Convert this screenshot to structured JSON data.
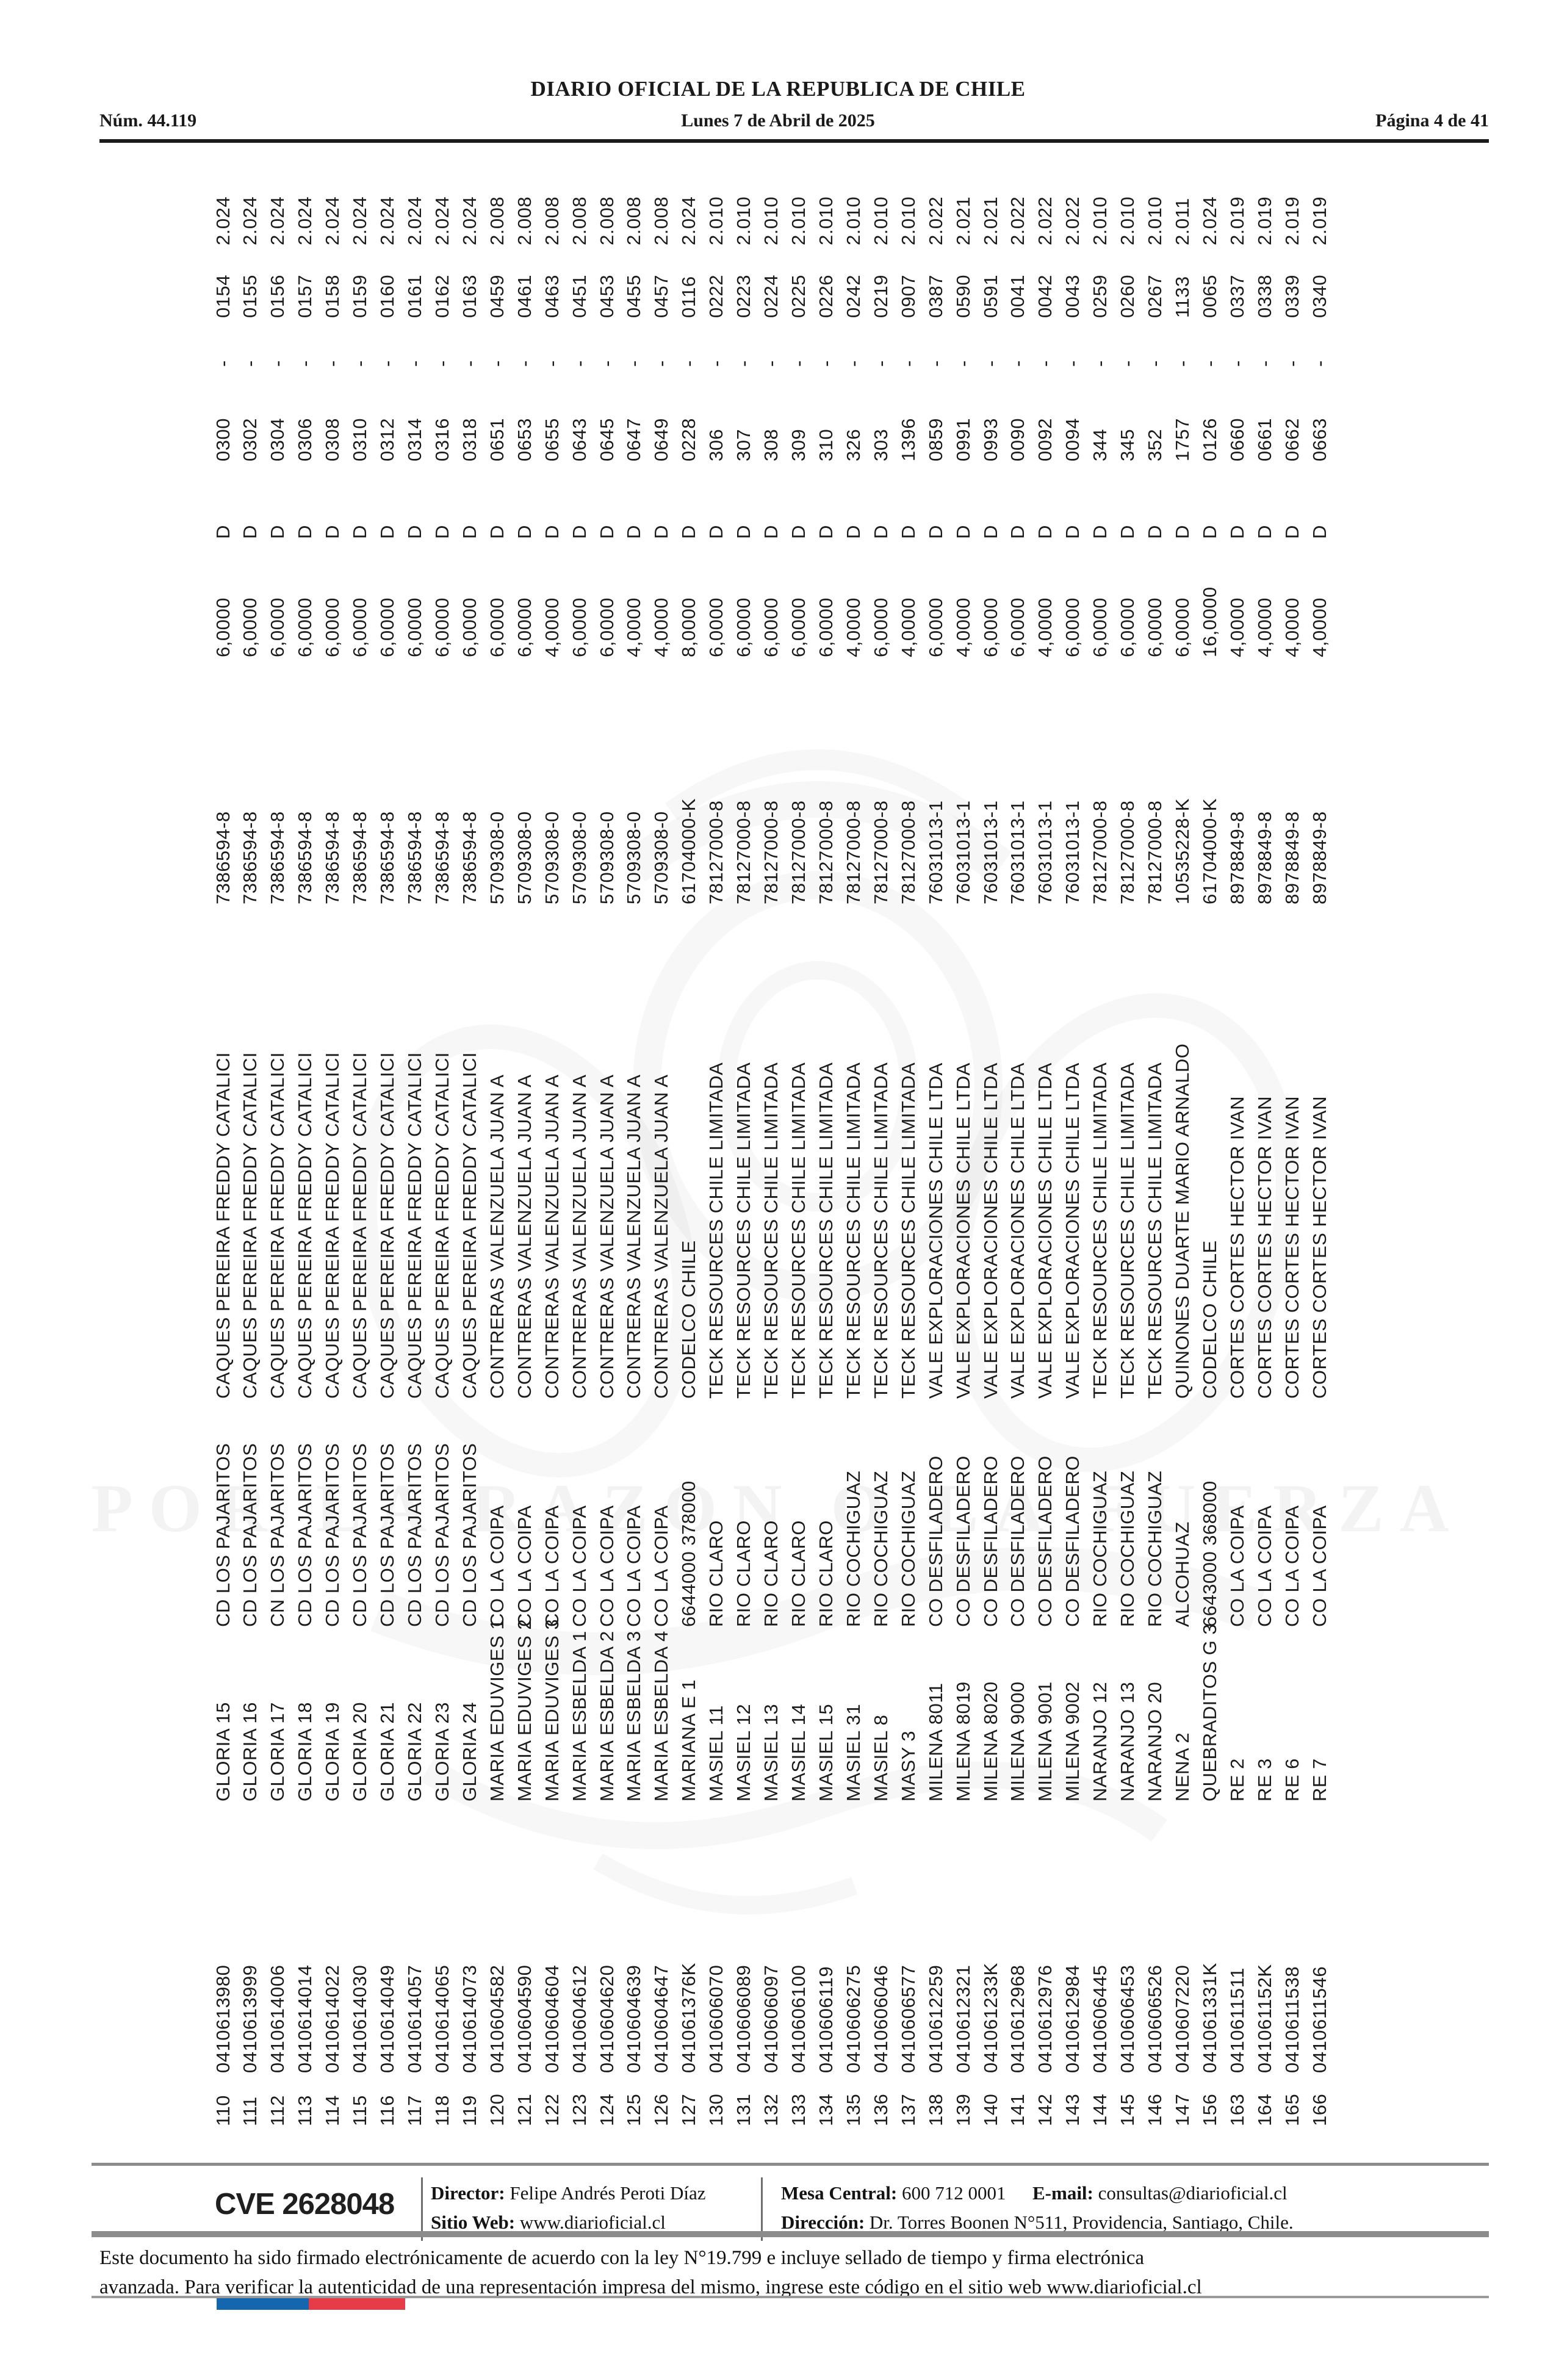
{
  "header": {
    "issue": "Núm. 44.119",
    "title": "DIARIO OFICIAL DE LA REPUBLICA DE CHILE",
    "date": "Lunes 7 de Abril de 2025",
    "page": "Página 4 de 41"
  },
  "watermark": {
    "motto": "POR LA RAZON O LA FUERZA"
  },
  "table": {
    "records": [
      {
        "n": "110",
        "rut": "0410613980",
        "name": "GLORIA 15",
        "location": "CD LOS PAJARITOS",
        "company": "CAQUES PEREIRA FREDDY CATALICI",
        "tax_id": "7386594-8",
        "value": "6,0000",
        "code": "D",
        "num": "0300",
        "sep": "-",
        "serial": "0154",
        "year": "2.024"
      },
      {
        "n": "111",
        "rut": "0410613999",
        "name": "GLORIA 16",
        "location": "CD LOS PAJARITOS",
        "company": "CAQUES PEREIRA FREDDY CATALICI",
        "tax_id": "7386594-8",
        "value": "6,0000",
        "code": "D",
        "num": "0302",
        "sep": "-",
        "serial": "0155",
        "year": "2.024"
      },
      {
        "n": "112",
        "rut": "0410614006",
        "name": "GLORIA 17",
        "location": "CN LOS PAJARITOS",
        "company": "CAQUES PEREIRA FREDDY CATALICI",
        "tax_id": "7386594-8",
        "value": "6,0000",
        "code": "D",
        "num": "0304",
        "sep": "-",
        "serial": "0156",
        "year": "2.024"
      },
      {
        "n": "113",
        "rut": "0410614014",
        "name": "GLORIA 18",
        "location": "CD LOS PAJARITOS",
        "company": "CAQUES PEREIRA FREDDY CATALICI",
        "tax_id": "7386594-8",
        "value": "6,0000",
        "code": "D",
        "num": "0306",
        "sep": "-",
        "serial": "0157",
        "year": "2.024"
      },
      {
        "n": "114",
        "rut": "0410614022",
        "name": "GLORIA 19",
        "location": "CD LOS PAJARITOS",
        "company": "CAQUES PEREIRA FREDDY CATALICI",
        "tax_id": "7386594-8",
        "value": "6,0000",
        "code": "D",
        "num": "0308",
        "sep": "-",
        "serial": "0158",
        "year": "2.024"
      },
      {
        "n": "115",
        "rut": "0410614030",
        "name": "GLORIA 20",
        "location": "CD LOS PAJARITOS",
        "company": "CAQUES PEREIRA FREDDY CATALICI",
        "tax_id": "7386594-8",
        "value": "6,0000",
        "code": "D",
        "num": "0310",
        "sep": "-",
        "serial": "0159",
        "year": "2.024"
      },
      {
        "n": "116",
        "rut": "0410614049",
        "name": "GLORIA 21",
        "location": "CD LOS PAJARITOS",
        "company": "CAQUES PEREIRA FREDDY CATALICI",
        "tax_id": "7386594-8",
        "value": "6,0000",
        "code": "D",
        "num": "0312",
        "sep": "-",
        "serial": "0160",
        "year": "2.024"
      },
      {
        "n": "117",
        "rut": "0410614057",
        "name": "GLORIA 22",
        "location": "CD LOS PAJARITOS",
        "company": "CAQUES PEREIRA FREDDY CATALICI",
        "tax_id": "7386594-8",
        "value": "6,0000",
        "code": "D",
        "num": "0314",
        "sep": "-",
        "serial": "0161",
        "year": "2.024"
      },
      {
        "n": "118",
        "rut": "0410614065",
        "name": "GLORIA 23",
        "location": "CD LOS PAJARITOS",
        "company": "CAQUES PEREIRA FREDDY CATALICI",
        "tax_id": "7386594-8",
        "value": "6,0000",
        "code": "D",
        "num": "0316",
        "sep": "-",
        "serial": "0162",
        "year": "2.024"
      },
      {
        "n": "119",
        "rut": "0410614073",
        "name": "GLORIA 24",
        "location": "CD LOS PAJARITOS",
        "company": "CAQUES PEREIRA FREDDY CATALICI",
        "tax_id": "7386594-8",
        "value": "6,0000",
        "code": "D",
        "num": "0318",
        "sep": "-",
        "serial": "0163",
        "year": "2.024"
      },
      {
        "n": "120",
        "rut": "0410604582",
        "name": "MARIA EDUVIGES 1",
        "location": "CO LA COIPA",
        "company": "CONTRERAS VALENZUELA JUAN A",
        "tax_id": "5709308-0",
        "value": "6,0000",
        "code": "D",
        "num": "0651",
        "sep": "-",
        "serial": "0459",
        "year": "2.008"
      },
      {
        "n": "121",
        "rut": "0410604590",
        "name": "MARIA EDUVIGES 2",
        "location": "CO LA COIPA",
        "company": "CONTRERAS VALENZUELA JUAN A",
        "tax_id": "5709308-0",
        "value": "6,0000",
        "code": "D",
        "num": "0653",
        "sep": "-",
        "serial": "0461",
        "year": "2.008"
      },
      {
        "n": "122",
        "rut": "0410604604",
        "name": "MARIA EDUVIGES 3",
        "location": "CO LA COIPA",
        "company": "CONTRERAS VALENZUELA JUAN A",
        "tax_id": "5709308-0",
        "value": "4,0000",
        "code": "D",
        "num": "0655",
        "sep": "-",
        "serial": "0463",
        "year": "2.008"
      },
      {
        "n": "123",
        "rut": "0410604612",
        "name": "MARIA ESBELDA 1",
        "location": "CO LA COIPA",
        "company": "CONTRERAS VALENZUELA JUAN A",
        "tax_id": "5709308-0",
        "value": "6,0000",
        "code": "D",
        "num": "0643",
        "sep": "-",
        "serial": "0451",
        "year": "2.008"
      },
      {
        "n": "124",
        "rut": "0410604620",
        "name": "MARIA ESBELDA 2",
        "location": "CO LA COIPA",
        "company": "CONTRERAS VALENZUELA JUAN A",
        "tax_id": "5709308-0",
        "value": "6,0000",
        "code": "D",
        "num": "0645",
        "sep": "-",
        "serial": "0453",
        "year": "2.008"
      },
      {
        "n": "125",
        "rut": "0410604639",
        "name": "MARIA ESBELDA 3",
        "location": "CO LA COIPA",
        "company": "CONTRERAS VALENZUELA JUAN A",
        "tax_id": "5709308-0",
        "value": "4,0000",
        "code": "D",
        "num": "0647",
        "sep": "-",
        "serial": "0455",
        "year": "2.008"
      },
      {
        "n": "126",
        "rut": "0410604647",
        "name": "MARIA ESBELDA 4",
        "location": "CO LA COIPA",
        "company": "CONTRERAS VALENZUELA JUAN A",
        "tax_id": "5709308-0",
        "value": "4,0000",
        "code": "D",
        "num": "0649",
        "sep": "-",
        "serial": "0457",
        "year": "2.008"
      },
      {
        "n": "127",
        "rut": "041061376K",
        "name": "MARIANA E 1",
        "location": "6644000 378000",
        "company": "CODELCO CHILE",
        "tax_id": "61704000-K",
        "value": "8,0000",
        "code": "D",
        "num": "0228",
        "sep": "-",
        "serial": "0116",
        "year": "2.024"
      },
      {
        "n": "130",
        "rut": "0410606070",
        "name": "MASIEL 11",
        "location": "RIO CLARO",
        "company": "TECK RESOURCES CHILE LIMITADA",
        "tax_id": "78127000-8",
        "value": "6,0000",
        "code": "D",
        "num": "306",
        "sep": "-",
        "serial": "0222",
        "year": "2.010"
      },
      {
        "n": "131",
        "rut": "0410606089",
        "name": "MASIEL 12",
        "location": "RIO CLARO",
        "company": "TECK RESOURCES CHILE LIMITADA",
        "tax_id": "78127000-8",
        "value": "6,0000",
        "code": "D",
        "num": "307",
        "sep": "-",
        "serial": "0223",
        "year": "2.010"
      },
      {
        "n": "132",
        "rut": "0410606097",
        "name": "MASIEL 13",
        "location": "RIO CLARO",
        "company": "TECK RESOURCES CHILE LIMITADA",
        "tax_id": "78127000-8",
        "value": "6,0000",
        "code": "D",
        "num": "308",
        "sep": "-",
        "serial": "0224",
        "year": "2.010"
      },
      {
        "n": "133",
        "rut": "0410606100",
        "name": "MASIEL 14",
        "location": "RIO CLARO",
        "company": "TECK RESOURCES CHILE LIMITADA",
        "tax_id": "78127000-8",
        "value": "6,0000",
        "code": "D",
        "num": "309",
        "sep": "-",
        "serial": "0225",
        "year": "2.010"
      },
      {
        "n": "134",
        "rut": "0410606119",
        "name": "MASIEL 15",
        "location": "RIO CLARO",
        "company": "TECK RESOURCES CHILE LIMITADA",
        "tax_id": "78127000-8",
        "value": "6,0000",
        "code": "D",
        "num": "310",
        "sep": "-",
        "serial": "0226",
        "year": "2.010"
      },
      {
        "n": "135",
        "rut": "0410606275",
        "name": "MASIEL 31",
        "location": "RIO COCHIGUAZ",
        "company": "TECK RESOURCES CHILE LIMITADA",
        "tax_id": "78127000-8",
        "value": "4,0000",
        "code": "D",
        "num": "326",
        "sep": "-",
        "serial": "0242",
        "year": "2.010"
      },
      {
        "n": "136",
        "rut": "0410606046",
        "name": "MASIEL 8",
        "location": "RIO COCHIGUAZ",
        "company": "TECK RESOURCES CHILE LIMITADA",
        "tax_id": "78127000-8",
        "value": "6,0000",
        "code": "D",
        "num": "303",
        "sep": "-",
        "serial": "0219",
        "year": "2.010"
      },
      {
        "n": "137",
        "rut": "0410606577",
        "name": "MASY 3",
        "location": "RIO COCHIGUAZ",
        "company": "TECK RESOURCES CHILE LIMITADA",
        "tax_id": "78127000-8",
        "value": "4,0000",
        "code": "D",
        "num": "1396",
        "sep": "-",
        "serial": "0907",
        "year": "2.010"
      },
      {
        "n": "138",
        "rut": "0410612259",
        "name": "MILENA 8011",
        "location": "CO DESFILADERO",
        "company": "VALE EXPLORACIONES CHILE LTDA",
        "tax_id": "76031013-1",
        "value": "6,0000",
        "code": "D",
        "num": "0859",
        "sep": "-",
        "serial": "0387",
        "year": "2.022"
      },
      {
        "n": "139",
        "rut": "0410612321",
        "name": "MILENA 8019",
        "location": "CO DESFILADERO",
        "company": "VALE EXPLORACIONES CHILE LTDA",
        "tax_id": "76031013-1",
        "value": "4,0000",
        "code": "D",
        "num": "0991",
        "sep": "-",
        "serial": "0590",
        "year": "2.021"
      },
      {
        "n": "140",
        "rut": "041061233K",
        "name": "MILENA 8020",
        "location": "CO DESFILADERO",
        "company": "VALE EXPLORACIONES CHILE LTDA",
        "tax_id": "76031013-1",
        "value": "6,0000",
        "code": "D",
        "num": "0993",
        "sep": "-",
        "serial": "0591",
        "year": "2.021"
      },
      {
        "n": "141",
        "rut": "0410612968",
        "name": "MILENA 9000",
        "location": "CO DESFILADERO",
        "company": "VALE EXPLORACIONES CHILE LTDA",
        "tax_id": "76031013-1",
        "value": "6,0000",
        "code": "D",
        "num": "0090",
        "sep": "-",
        "serial": "0041",
        "year": "2.022"
      },
      {
        "n": "142",
        "rut": "0410612976",
        "name": "MILENA 9001",
        "location": "CO DESFILADERO",
        "company": "VALE EXPLORACIONES CHILE LTDA",
        "tax_id": "76031013-1",
        "value": "4,0000",
        "code": "D",
        "num": "0092",
        "sep": "-",
        "serial": "0042",
        "year": "2.022"
      },
      {
        "n": "143",
        "rut": "0410612984",
        "name": "MILENA 9002",
        "location": "CO DESFILADERO",
        "company": "VALE EXPLORACIONES CHILE LTDA",
        "tax_id": "76031013-1",
        "value": "6,0000",
        "code": "D",
        "num": "0094",
        "sep": "-",
        "serial": "0043",
        "year": "2.022"
      },
      {
        "n": "144",
        "rut": "0410606445",
        "name": "NARANJO 12",
        "location": "RIO COCHIGUAZ",
        "company": "TECK RESOURCES CHILE LIMITADA",
        "tax_id": "78127000-8",
        "value": "6,0000",
        "code": "D",
        "num": "344",
        "sep": "-",
        "serial": "0259",
        "year": "2.010"
      },
      {
        "n": "145",
        "rut": "0410606453",
        "name": "NARANJO 13",
        "location": "RIO COCHIGUAZ",
        "company": "TECK RESOURCES CHILE LIMITADA",
        "tax_id": "78127000-8",
        "value": "6,0000",
        "code": "D",
        "num": "345",
        "sep": "-",
        "serial": "0260",
        "year": "2.010"
      },
      {
        "n": "146",
        "rut": "0410606526",
        "name": "NARANJO 20",
        "location": "RIO COCHIGUAZ",
        "company": "TECK RESOURCES CHILE LIMITADA",
        "tax_id": "78127000-8",
        "value": "6,0000",
        "code": "D",
        "num": "352",
        "sep": "-",
        "serial": "0267",
        "year": "2.010"
      },
      {
        "n": "147",
        "rut": "0410607220",
        "name": "NENA 2",
        "location": "ALCOHUAZ",
        "company": "QUINONES DUARTE MARIO ARNALDO",
        "tax_id": "10535228-K",
        "value": "6,0000",
        "code": "D",
        "num": "1757",
        "sep": "-",
        "serial": "1133",
        "year": "2.011"
      },
      {
        "n": "156",
        "rut": "041061331K",
        "name": "QUEBRADITOS G 3",
        "location": "6643000 368000",
        "company": "CODELCO CHILE",
        "tax_id": "61704000-K",
        "value": "16,0000",
        "code": "D",
        "num": "0126",
        "sep": "-",
        "serial": "0065",
        "year": "2.024"
      },
      {
        "n": "163",
        "rut": "0410611511",
        "name": "RE 2",
        "location": "CO LA COIPA",
        "company": "CORTES CORTES HECTOR IVAN",
        "tax_id": "8978849-8",
        "value": "4,0000",
        "code": "D",
        "num": "0660",
        "sep": "-",
        "serial": "0337",
        "year": "2.019"
      },
      {
        "n": "164",
        "rut": "041061152K",
        "name": "RE 3",
        "location": "CO LA COIPA",
        "company": "CORTES CORTES HECTOR IVAN",
        "tax_id": "8978849-8",
        "value": "4,0000",
        "code": "D",
        "num": "0661",
        "sep": "-",
        "serial": "0338",
        "year": "2.019"
      },
      {
        "n": "165",
        "rut": "0410611538",
        "name": "RE 6",
        "location": "CO LA COIPA",
        "company": "CORTES CORTES HECTOR IVAN",
        "tax_id": "8978849-8",
        "value": "4,0000",
        "code": "D",
        "num": "0662",
        "sep": "-",
        "serial": "0339",
        "year": "2.019"
      },
      {
        "n": "166",
        "rut": "0410611546",
        "name": "RE 7",
        "location": "CO LA COIPA",
        "company": "CORTES CORTES HECTOR IVAN",
        "tax_id": "8978849-8",
        "value": "4,0000",
        "code": "D",
        "num": "0663",
        "sep": "-",
        "serial": "0340",
        "year": "2.019"
      }
    ]
  },
  "footer": {
    "cve": "CVE 2628048",
    "director_label": "Director:",
    "director": "Felipe Andrés Peroti Díaz",
    "sitio_label": "Sitio Web:",
    "sitio": "www.diarioficial.cl",
    "mesa_label": "Mesa Central:",
    "mesa": "600 712 0001",
    "email_label": "E-mail:",
    "email": "consultas@diarioficial.cl",
    "direccion_label": "Dirección:",
    "direccion": "Dr. Torres Boonen N°511, Providencia, Santiago, Chile."
  },
  "disclaimer": {
    "line1": "Este documento ha sido firmado electrónicamente de acuerdo con la ley N°19.799 e incluye sellado de tiempo y firma electrónica",
    "line2": "avanzada. Para verificar la autenticidad de una representación impresa del mismo, ingrese este código en el sitio web www.diarioficial.cl"
  },
  "flag": {
    "blue": "#1467af",
    "red": "#e63c47"
  }
}
